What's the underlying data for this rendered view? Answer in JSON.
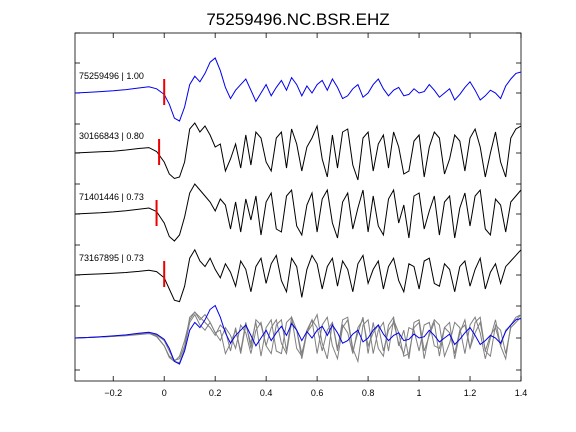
{
  "chart_data": {
    "type": "line",
    "title": "75259496.NC.BSR.EHZ",
    "xlabel": "",
    "ylabel": "",
    "xlim": [
      -0.35,
      1.4
    ],
    "xticks": [
      -0.2,
      0,
      0.2,
      0.4,
      0.6,
      0.8,
      1,
      1.2,
      1.4
    ],
    "xtick_labels": [
      "−0.2",
      "0",
      "0.2",
      "0.4",
      "0.6",
      "0.8",
      "1",
      "1.2",
      "1.4"
    ],
    "grid": false,
    "legend": "none",
    "colors": {
      "reference": "#0000ee",
      "match": "#000000",
      "overlay_match": "#808080",
      "pick": "#ee0000"
    },
    "traces": [
      {
        "label": "75259496 | 1.00",
        "event_id": "75259496",
        "correlation": 1.0,
        "color": "#0000ee",
        "pick_time": 0.0,
        "waveform": {
          "x": [
            -0.35,
            -0.3,
            -0.25,
            -0.2,
            -0.15,
            -0.1,
            -0.06,
            -0.03,
            0.0,
            0.02,
            0.04,
            0.06,
            0.08,
            0.1,
            0.12,
            0.14,
            0.16,
            0.18,
            0.2,
            0.22,
            0.24,
            0.26,
            0.28,
            0.3,
            0.32,
            0.34,
            0.36,
            0.38,
            0.4,
            0.42,
            0.44,
            0.46,
            0.48,
            0.5,
            0.52,
            0.54,
            0.56,
            0.58,
            0.6,
            0.62,
            0.64,
            0.66,
            0.68,
            0.7,
            0.72,
            0.74,
            0.76,
            0.78,
            0.8,
            0.82,
            0.84,
            0.86,
            0.88,
            0.9,
            0.92,
            0.94,
            0.96,
            0.98,
            1.0,
            1.02,
            1.04,
            1.06,
            1.08,
            1.1,
            1.12,
            1.14,
            1.16,
            1.18,
            1.2,
            1.22,
            1.24,
            1.26,
            1.28,
            1.3,
            1.32,
            1.34,
            1.36,
            1.38,
            1.4
          ],
          "y": [
            0.0,
            0.02,
            0.05,
            0.08,
            0.12,
            0.18,
            0.22,
            0.15,
            -0.05,
            -0.4,
            -0.9,
            -1.0,
            -0.5,
            0.3,
            0.6,
            0.4,
            0.7,
            1.1,
            1.25,
            0.8,
            0.2,
            -0.2,
            0.1,
            0.3,
            0.5,
            0.1,
            -0.3,
            0.0,
            0.3,
            -0.1,
            0.2,
            0.45,
            0.1,
            0.55,
            0.3,
            -0.1,
            0.25,
            0.0,
            0.3,
            0.45,
            0.1,
            0.5,
            0.2,
            -0.2,
            -0.1,
            0.15,
            0.3,
            -0.15,
            0.0,
            0.3,
            0.5,
            0.15,
            -0.1,
            0.1,
            0.2,
            -0.1,
            -0.05,
            0.15,
            0.0,
            0.05,
            0.3,
            0.1,
            -0.15,
            0.0,
            0.15,
            -0.25,
            -0.05,
            0.2,
            0.4,
            0.1,
            -0.25,
            -0.1,
            0.1,
            0.0,
            -0.2,
            0.25,
            0.5,
            0.7,
            0.75
          ]
        }
      },
      {
        "label": "30166843 | 0.80",
        "event_id": "30166843",
        "correlation": 0.8,
        "color": "#000000",
        "pick_time": -0.02,
        "waveform": {
          "x": [
            -0.35,
            -0.3,
            -0.25,
            -0.2,
            -0.15,
            -0.1,
            -0.06,
            -0.03,
            0.0,
            0.02,
            0.04,
            0.06,
            0.08,
            0.1,
            0.12,
            0.14,
            0.16,
            0.18,
            0.2,
            0.22,
            0.24,
            0.26,
            0.28,
            0.3,
            0.32,
            0.34,
            0.36,
            0.38,
            0.4,
            0.42,
            0.44,
            0.46,
            0.48,
            0.5,
            0.52,
            0.54,
            0.56,
            0.58,
            0.6,
            0.62,
            0.64,
            0.66,
            0.68,
            0.7,
            0.72,
            0.74,
            0.76,
            0.78,
            0.8,
            0.82,
            0.84,
            0.86,
            0.88,
            0.9,
            0.92,
            0.94,
            0.96,
            0.98,
            1.0,
            1.02,
            1.04,
            1.06,
            1.08,
            1.1,
            1.12,
            1.14,
            1.16,
            1.18,
            1.2,
            1.22,
            1.24,
            1.26,
            1.28,
            1.3,
            1.32,
            1.34,
            1.36,
            1.38,
            1.4
          ],
          "y": [
            0.0,
            0.02,
            0.04,
            0.06,
            0.1,
            0.15,
            0.18,
            0.05,
            -0.3,
            -0.7,
            -0.85,
            -0.8,
            -0.3,
            0.8,
            1.0,
            0.7,
            0.9,
            0.6,
            0.2,
            0.3,
            -0.6,
            -0.2,
            0.3,
            -0.5,
            0.6,
            -0.4,
            0.7,
            0.5,
            -0.3,
            -0.6,
            0.5,
            0.7,
            -0.5,
            0.8,
            0.3,
            -0.6,
            0.2,
            0.5,
            0.9,
            -0.2,
            -0.8,
            0.6,
            -0.5,
            0.7,
            0.8,
            -0.4,
            -0.9,
            0.5,
            0.7,
            -0.6,
            0.3,
            0.6,
            -0.5,
            0.7,
            0.2,
            -0.7,
            -0.6,
            0.4,
            0.6,
            -0.8,
            0.2,
            0.7,
            0.5,
            -0.7,
            -0.2,
            0.6,
            0.4,
            -0.6,
            0.5,
            0.8,
            0.2,
            -0.8,
            0.0,
            0.7,
            -0.3,
            -0.8,
            0.5,
            0.8,
            0.9
          ]
        }
      },
      {
        "label": "71401446 | 0.73",
        "event_id": "71401446",
        "correlation": 0.73,
        "color": "#000000",
        "pick_time": -0.03,
        "waveform": {
          "x": [
            -0.35,
            -0.3,
            -0.25,
            -0.2,
            -0.15,
            -0.1,
            -0.06,
            -0.03,
            0.0,
            0.02,
            0.04,
            0.06,
            0.08,
            0.1,
            0.12,
            0.14,
            0.16,
            0.18,
            0.2,
            0.22,
            0.24,
            0.26,
            0.28,
            0.3,
            0.32,
            0.34,
            0.36,
            0.38,
            0.4,
            0.42,
            0.44,
            0.46,
            0.48,
            0.5,
            0.52,
            0.54,
            0.56,
            0.58,
            0.6,
            0.62,
            0.64,
            0.66,
            0.68,
            0.7,
            0.72,
            0.74,
            0.76,
            0.78,
            0.8,
            0.82,
            0.84,
            0.86,
            0.88,
            0.9,
            0.92,
            0.94,
            0.96,
            0.98,
            1.0,
            1.02,
            1.04,
            1.06,
            1.08,
            1.1,
            1.12,
            1.14,
            1.16,
            1.18,
            1.2,
            1.22,
            1.24,
            1.26,
            1.28,
            1.3,
            1.32,
            1.34,
            1.36,
            1.38,
            1.4
          ],
          "y": [
            0.0,
            0.02,
            0.04,
            0.07,
            0.11,
            0.16,
            0.2,
            0.08,
            -0.3,
            -0.75,
            -0.9,
            -0.7,
            -0.1,
            0.7,
            1.0,
            0.8,
            0.6,
            0.4,
            0.1,
            0.5,
            0.3,
            -0.5,
            0.4,
            -0.6,
            0.5,
            -0.2,
            0.6,
            -0.7,
            0.4,
            0.7,
            -0.5,
            -0.6,
            0.6,
            0.8,
            -0.4,
            -0.7,
            0.3,
            0.7,
            -0.6,
            0.5,
            0.8,
            -0.3,
            -0.8,
            0.4,
            0.7,
            -0.5,
            0.2,
            0.8,
            -0.6,
            0.6,
            -0.4,
            -0.7,
            0.5,
            0.8,
            -0.3,
            0.3,
            -0.8,
            0.6,
            0.7,
            -0.5,
            0.1,
            0.6,
            -0.7,
            0.4,
            0.6,
            -0.8,
            0.2,
            0.7,
            -0.4,
            0.6,
            0.8,
            -0.5,
            -0.7,
            0.5,
            0.3,
            -0.6,
            0.4,
            0.6,
            0.8
          ]
        }
      },
      {
        "label": "73167895 | 0.73",
        "event_id": "73167895",
        "correlation": 0.73,
        "color": "#000000",
        "pick_time": 0.0,
        "waveform": {
          "x": [
            -0.35,
            -0.3,
            -0.25,
            -0.2,
            -0.15,
            -0.1,
            -0.06,
            -0.03,
            0.0,
            0.02,
            0.04,
            0.06,
            0.08,
            0.1,
            0.12,
            0.14,
            0.16,
            0.18,
            0.2,
            0.22,
            0.24,
            0.26,
            0.28,
            0.3,
            0.32,
            0.34,
            0.36,
            0.38,
            0.4,
            0.42,
            0.44,
            0.46,
            0.48,
            0.5,
            0.52,
            0.54,
            0.56,
            0.58,
            0.6,
            0.62,
            0.64,
            0.66,
            0.68,
            0.7,
            0.72,
            0.74,
            0.76,
            0.78,
            0.8,
            0.82,
            0.84,
            0.86,
            0.88,
            0.9,
            0.92,
            0.94,
            0.96,
            0.98,
            1.0,
            1.02,
            1.04,
            1.06,
            1.08,
            1.1,
            1.12,
            1.14,
            1.16,
            1.18,
            1.2,
            1.22,
            1.24,
            1.26,
            1.28,
            1.3,
            1.32,
            1.34,
            1.36,
            1.38,
            1.4
          ],
          "y": [
            0.0,
            0.02,
            0.04,
            0.06,
            0.09,
            0.13,
            0.17,
            0.12,
            -0.1,
            -0.5,
            -0.9,
            -0.95,
            -0.4,
            0.6,
            0.9,
            0.5,
            0.3,
            0.6,
            0.2,
            -0.1,
            0.4,
            0.1,
            -0.4,
            0.5,
            0.2,
            -0.6,
            0.3,
            0.6,
            -0.3,
            0.4,
            0.7,
            -0.2,
            -0.6,
            0.6,
            0.3,
            -0.8,
            0.2,
            0.7,
            0.4,
            -0.5,
            0.3,
            0.6,
            -0.4,
            0.5,
            0.2,
            -0.6,
            0.4,
            0.7,
            -0.3,
            0.2,
            0.5,
            -0.5,
            0.3,
            0.6,
            -0.2,
            -0.6,
            0.4,
            0.3,
            -0.5,
            0.5,
            0.6,
            -0.3,
            -0.4,
            0.4,
            0.2,
            -0.6,
            0.3,
            0.5,
            -0.4,
            0.2,
            0.6,
            -0.5,
            0.1,
            0.4,
            -0.3,
            0.3,
            0.5,
            0.7,
            0.9
          ]
        }
      }
    ]
  }
}
